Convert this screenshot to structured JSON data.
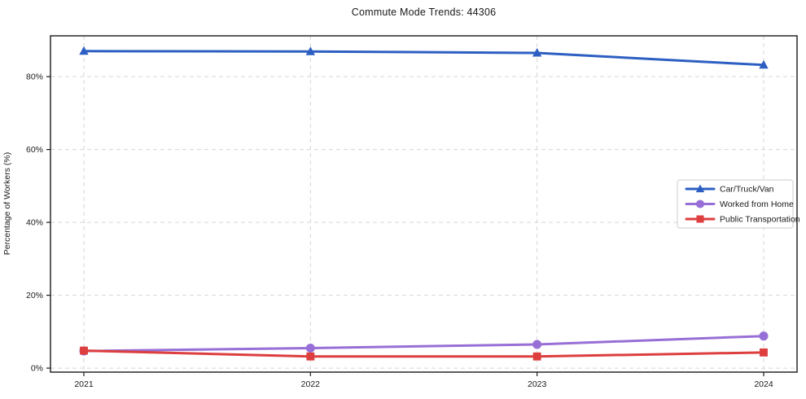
{
  "chart_data": {
    "type": "line",
    "title": "Commute Mode Trends: 44306",
    "xlabel": "",
    "ylabel": "Percentage of Workers (%)",
    "categories": [
      "2021",
      "2022",
      "2023",
      "2024"
    ],
    "series": [
      {
        "name": "Car/Truck/Van",
        "color": "#2d5fc2",
        "marker": "triangle",
        "values": [
          87.0,
          86.9,
          86.5,
          83.2
        ]
      },
      {
        "name": "Worked from Home",
        "color": "#976fd6",
        "marker": "circle",
        "values": [
          4.7,
          5.5,
          6.5,
          8.8
        ]
      },
      {
        "name": "Public Transportation",
        "color": "#dd3e3e",
        "marker": "square",
        "values": [
          4.8,
          3.2,
          3.2,
          4.3
        ]
      }
    ],
    "yticks": [
      0,
      20,
      40,
      60,
      80
    ],
    "ytick_labels": [
      "0%",
      "20%",
      "40%",
      "60%",
      "80%"
    ],
    "ylim": [
      -1.1,
      91.2
    ],
    "grid": true,
    "legend_position": "center-right",
    "colors": {
      "grid": "#d6d6d6",
      "spine": "#1a1a1a",
      "tick_label": "#1a1a1a",
      "legend_border": "#cccccc",
      "legend_bg": "#ffffff",
      "background": "#ffffff"
    }
  }
}
